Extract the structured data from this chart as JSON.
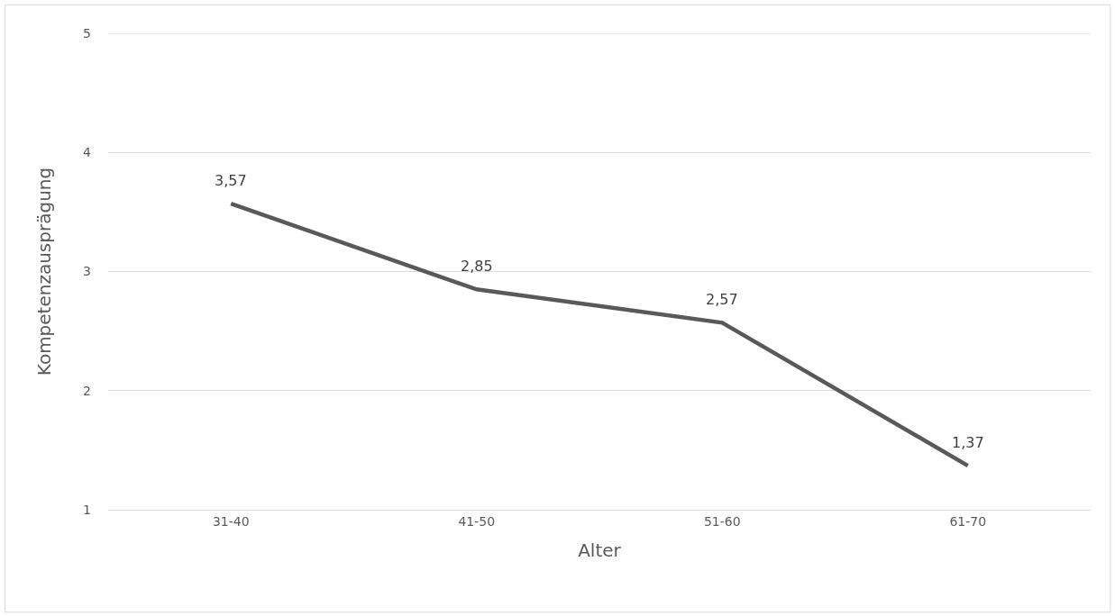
{
  "chart_data": {
    "type": "line",
    "xlabel": "Alter",
    "ylabel": "Kompetenzausprägung",
    "categories": [
      "31-40",
      "41-50",
      "51-60",
      "61-70"
    ],
    "series": [
      {
        "color": "#595959",
        "values": [
          3.57,
          2.85,
          2.57,
          1.37
        ],
        "value_labels": [
          "3,57",
          "2,85",
          "2,57",
          "1,37"
        ]
      }
    ],
    "ylim": [
      1,
      5
    ],
    "yticks": [
      1,
      2,
      3,
      4,
      5
    ],
    "grid": "y",
    "marker": "none",
    "line_style": "solid"
  }
}
